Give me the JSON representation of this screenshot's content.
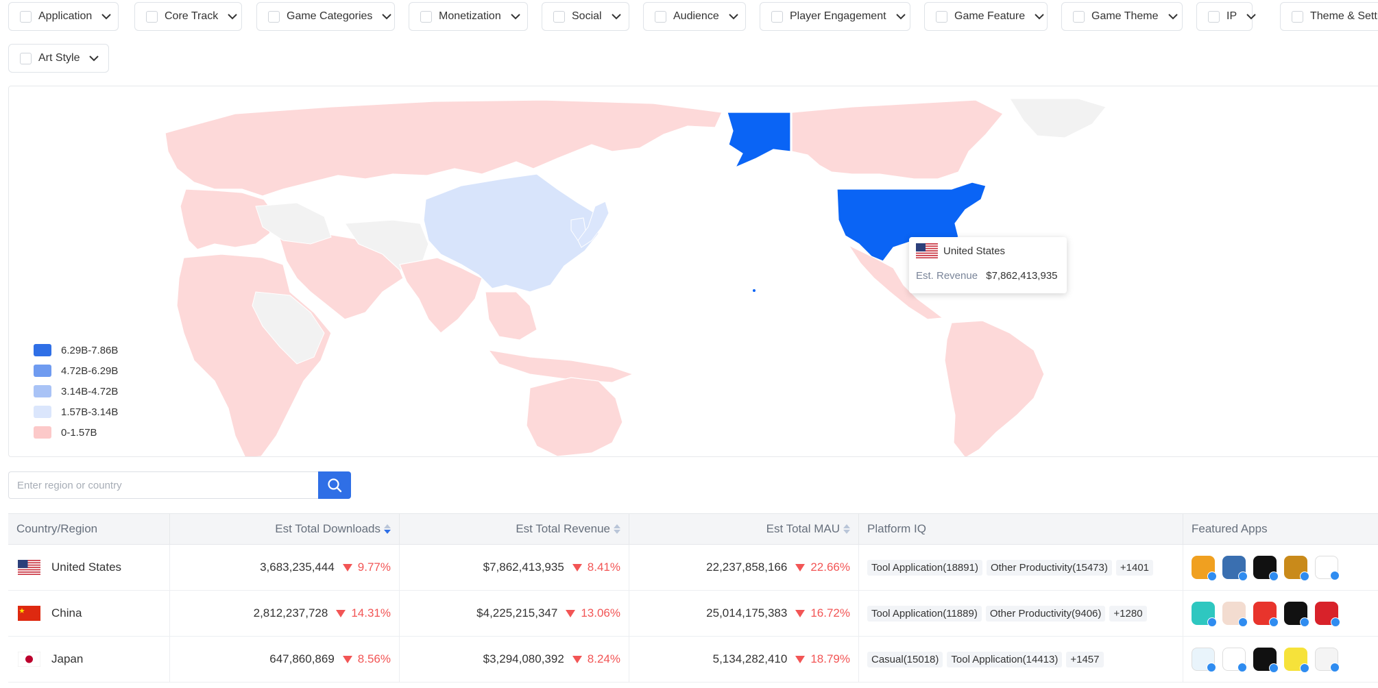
{
  "filters": [
    {
      "label": "Application"
    },
    {
      "label": "Core Track"
    },
    {
      "label": "Game Categories"
    },
    {
      "label": "Monetization"
    },
    {
      "label": "Social"
    },
    {
      "label": "Audience"
    },
    {
      "label": "Player Engagement"
    },
    {
      "label": "Game Feature"
    },
    {
      "label": "Game Theme"
    },
    {
      "label": "IP"
    },
    {
      "label": "Theme & Settin"
    },
    {
      "label": "Art Style"
    }
  ],
  "map": {
    "legend": [
      {
        "label": "6.29B-7.86B",
        "color": "#2f6fe6"
      },
      {
        "label": "4.72B-6.29B",
        "color": "#6f9bf0"
      },
      {
        "label": "3.14B-4.72B",
        "color": "#a9c3f6"
      },
      {
        "label": "1.57B-3.14B",
        "color": "#dbe6fc"
      },
      {
        "label": "0-1.57B",
        "color": "#fcc9c9"
      }
    ],
    "colors": {
      "highlight": "#0a64f5",
      "china": "#d8e4fb",
      "default": "#fdd9d9",
      "nodata": "#f2f2f2"
    },
    "tooltip": {
      "country": "United States",
      "label": "Est. Revenue",
      "value": "$7,862,413,935"
    }
  },
  "search": {
    "placeholder": "Enter region or country",
    "value": ""
  },
  "table": {
    "columns": [
      "Country/Region",
      "Est Total Downloads",
      "Est Total Revenue",
      "Est Total MAU",
      "Platform IQ",
      "Featured Apps"
    ],
    "rows": [
      {
        "country": "United States",
        "downloads": "3,683,235,444",
        "downloads_delta": "9.77%",
        "revenue": "$7,862,413,935",
        "revenue_delta": "8.41%",
        "mau": "22,237,858,166",
        "mau_delta": "22.66%",
        "tags": [
          "Tool Application(18891)",
          "Other Productivity(15473)",
          "+1401"
        ],
        "apps": [
          "#f0a020",
          "#3a6fb0",
          "#111111",
          "#c98a1a",
          "#ffffff"
        ]
      },
      {
        "country": "China",
        "downloads": "2,812,237,728",
        "downloads_delta": "14.31%",
        "revenue": "$4,225,215,347",
        "revenue_delta": "13.06%",
        "mau": "25,014,175,383",
        "mau_delta": "16.72%",
        "tags": [
          "Tool Application(11889)",
          "Other Productivity(9406)",
          "+1280"
        ],
        "apps": [
          "#2ec7c0",
          "#f3dcd0",
          "#e8342c",
          "#111111",
          "#d8222a"
        ]
      },
      {
        "country": "Japan",
        "downloads": "647,860,869",
        "downloads_delta": "8.56%",
        "revenue": "$3,294,080,392",
        "revenue_delta": "8.24%",
        "mau": "5,134,282,410",
        "mau_delta": "18.79%",
        "tags": [
          "Casual(15018)",
          "Tool Application(14413)",
          "+1457"
        ],
        "apps": [
          "#e9f4fb",
          "#ffffff",
          "#111111",
          "#f6e23a",
          "#f4f4f4"
        ]
      }
    ]
  }
}
